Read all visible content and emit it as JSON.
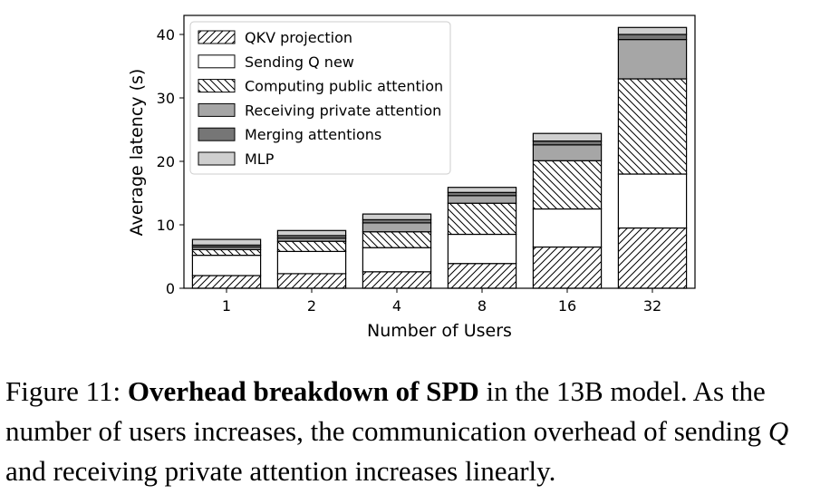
{
  "chart_data": {
    "type": "bar",
    "stacked": true,
    "categories": [
      "1",
      "2",
      "4",
      "8",
      "16",
      "32"
    ],
    "xlabel": "Number of Users",
    "ylabel": "Average latency (s)",
    "ylim": [
      0,
      43
    ],
    "yticks": [
      0,
      10,
      20,
      30,
      40
    ],
    "legend_position": "top-left",
    "series": [
      {
        "name": "QKV projection",
        "pattern": "hatch-forward",
        "color": "#ffffff",
        "values": [
          2.0,
          2.3,
          2.6,
          3.9,
          6.5,
          9.5
        ]
      },
      {
        "name": "Sending Q  new",
        "pattern": "none",
        "color": "#ffffff",
        "values": [
          3.2,
          3.5,
          3.8,
          4.6,
          6.0,
          8.5
        ]
      },
      {
        "name": "Computing public attention",
        "pattern": "hatch-back",
        "color": "#ffffff",
        "values": [
          0.9,
          1.6,
          2.5,
          4.9,
          7.6,
          15.0
        ]
      },
      {
        "name": "Receiving private attention",
        "pattern": "none",
        "color": "#a6a6a6",
        "values": [
          0.4,
          0.5,
          1.4,
          1.2,
          2.5,
          6.2
        ]
      },
      {
        "name": "Merging attentions",
        "pattern": "none",
        "color": "#767676",
        "values": [
          0.3,
          0.4,
          0.5,
          0.5,
          0.6,
          0.8
        ]
      },
      {
        "name": "MLP",
        "pattern": "none",
        "color": "#cfcfcf",
        "values": [
          0.9,
          0.8,
          0.9,
          0.8,
          1.2,
          1.1
        ]
      }
    ]
  },
  "caption": {
    "prefix": "Figure 11: ",
    "bold": "Overhead breakdown of SPD",
    "text1": " in the 13B model. As the number of users increases, the communication overhead of sending ",
    "italic": "Q",
    "text2": " and receiving private attention increases linearly."
  }
}
